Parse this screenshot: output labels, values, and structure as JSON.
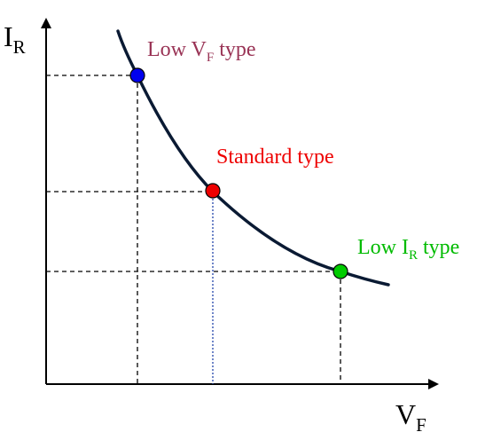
{
  "axes": {
    "y_label": {
      "main": "I",
      "sub": "R"
    },
    "x_label": {
      "main": "V",
      "sub": "F"
    }
  },
  "points": [
    {
      "label_main": "Low V",
      "label_sub": "F",
      "label_tail": " type",
      "color": "#0000ee",
      "text_color": "#993355"
    },
    {
      "label_main": "Standard type",
      "label_sub": "",
      "label_tail": "",
      "color": "#ee0000",
      "text_color": "#ee0000"
    },
    {
      "label_main": "Low I",
      "label_sub": "R",
      "label_tail": " type",
      "color": "#00cc00",
      "text_color": "#00bb00"
    }
  ],
  "colors": {
    "curve": "#0a1a33",
    "axes": "#000000",
    "guides": "#000000",
    "standard_guide_vertical": "#2244aa"
  }
}
